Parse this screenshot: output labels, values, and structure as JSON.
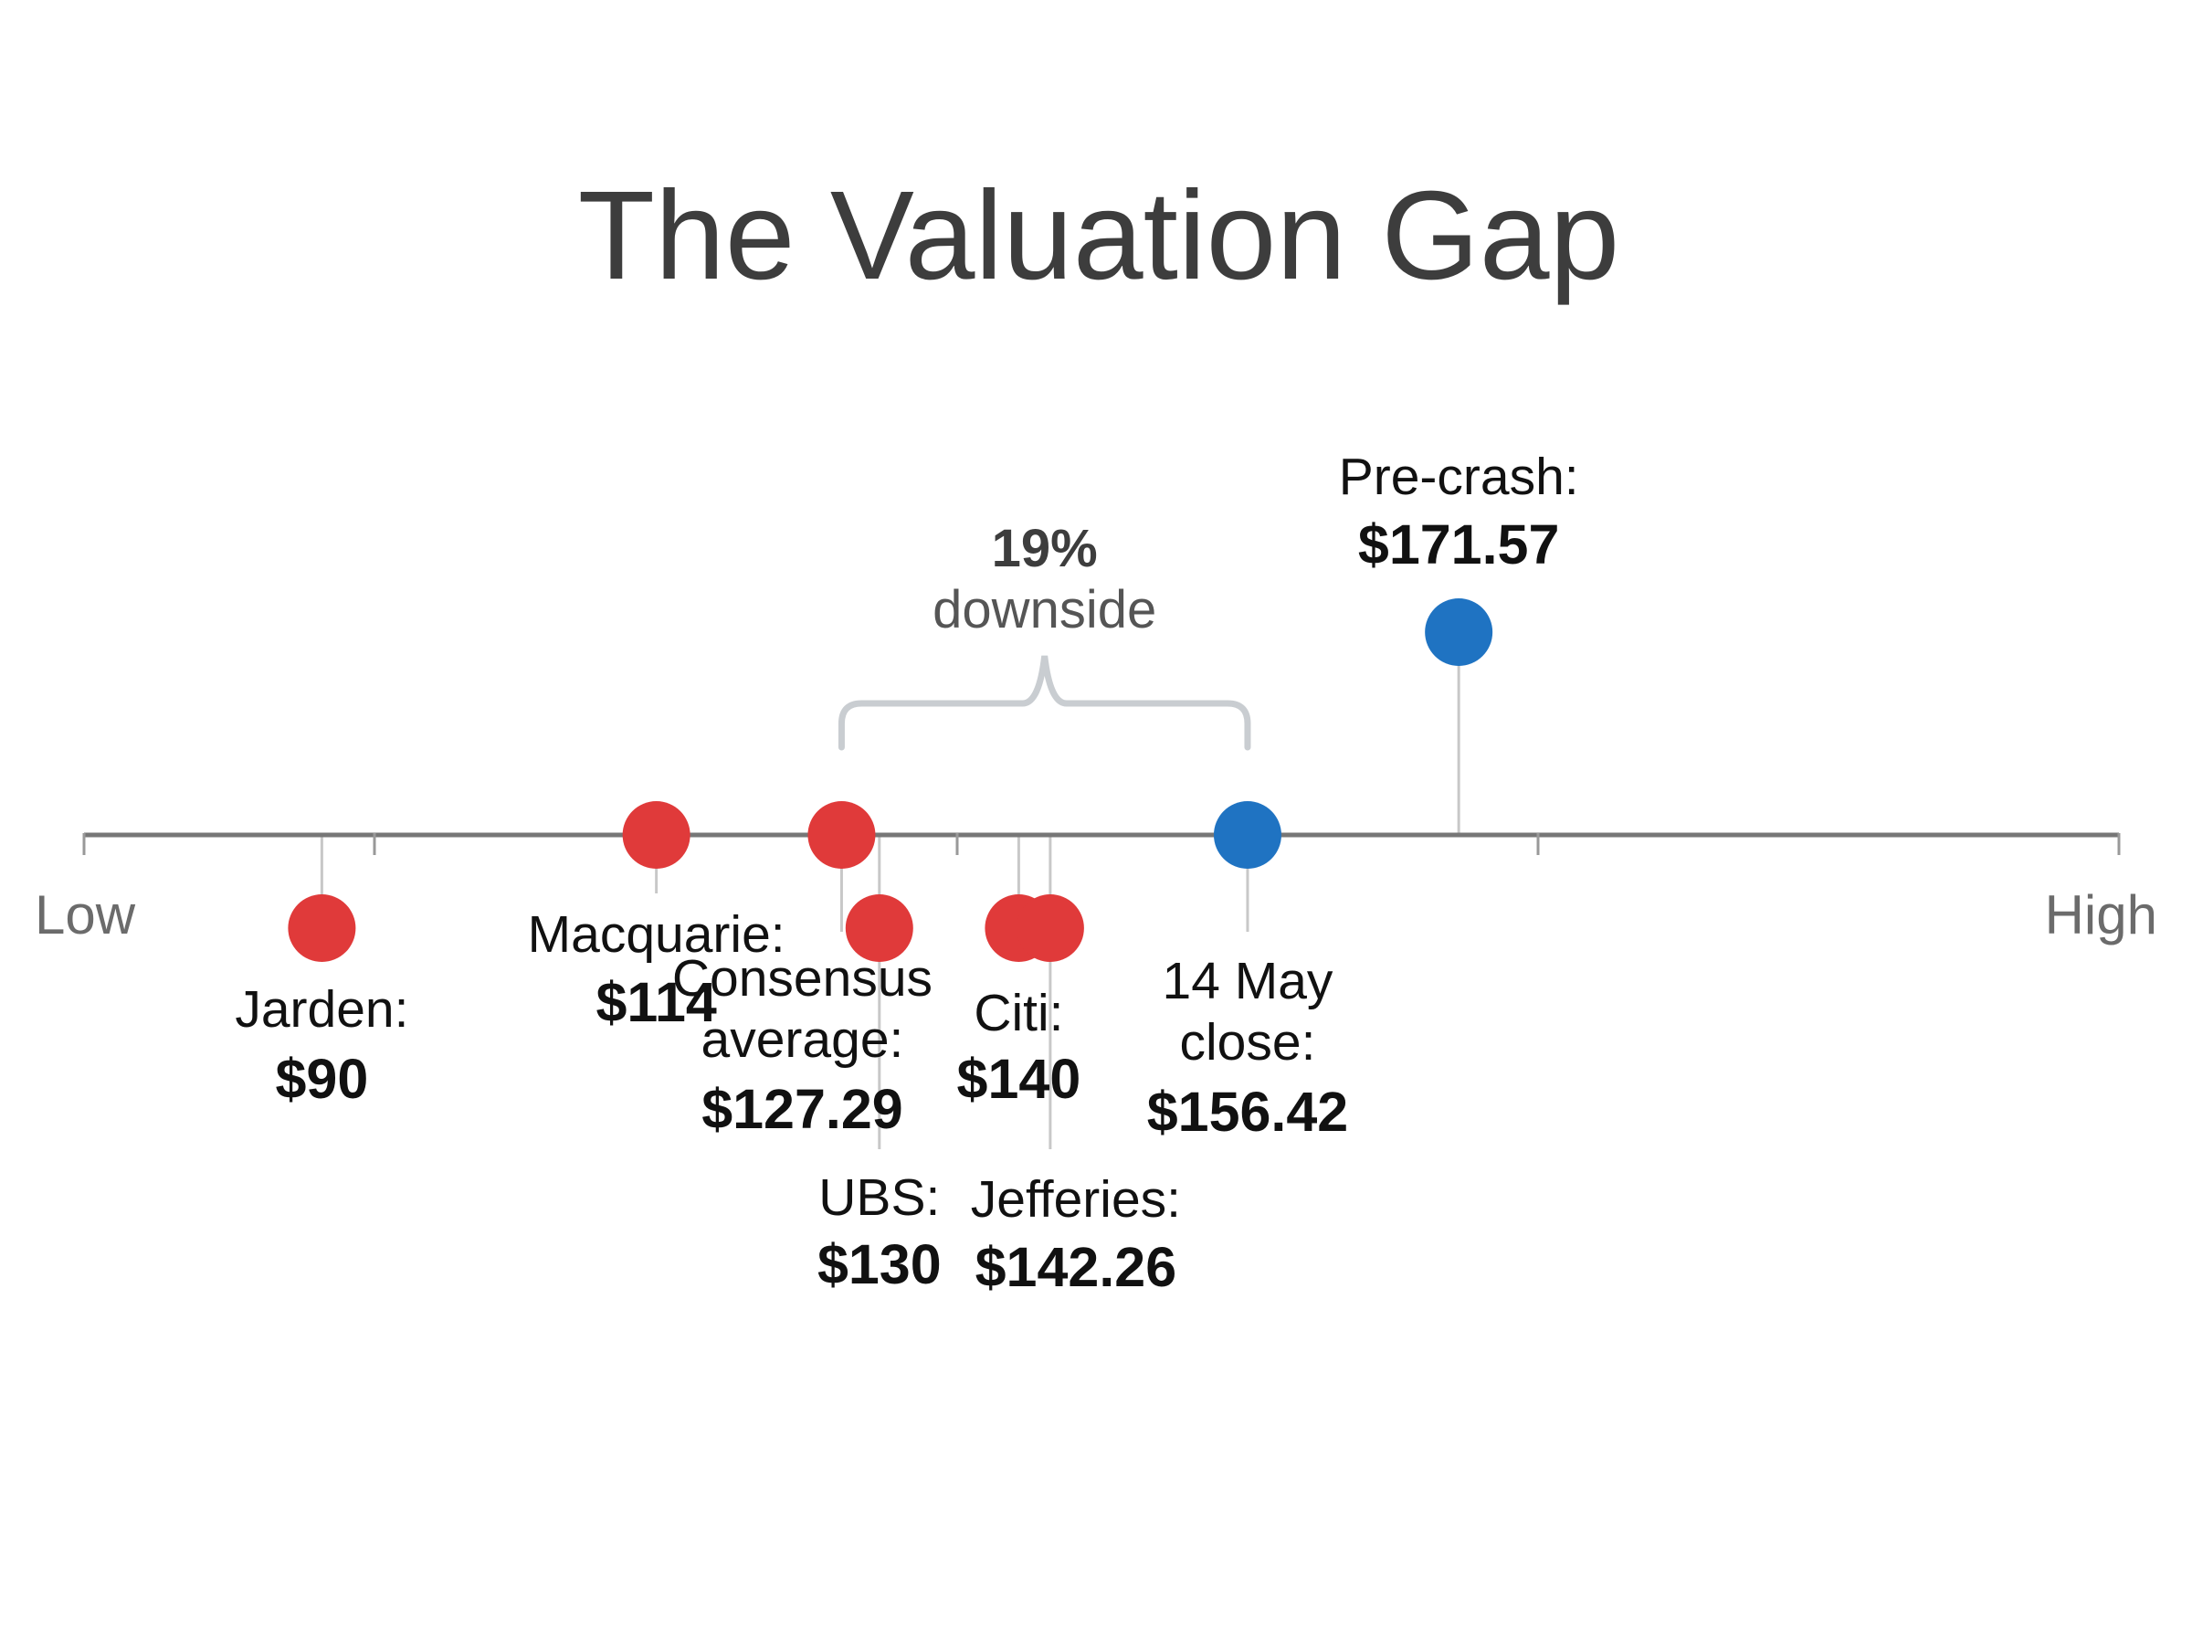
{
  "chart_data": {
    "type": "scatter",
    "title": "The Valuation Gap",
    "axis": {
      "low_label": "Low",
      "high_label": "High",
      "range": [
        80,
        180
      ]
    },
    "points": [
      {
        "name": "Jarden:",
        "value_label": "$90",
        "value": 90,
        "color": "#e03a3a"
      },
      {
        "name": "Macquarie:",
        "value_label": "$114",
        "value": 114,
        "color": "#e03a3a"
      },
      {
        "name": "Consensus average:",
        "value_label": "$127.29",
        "value": 127.29,
        "color": "#e03a3a"
      },
      {
        "name": "UBS:",
        "value_label": "$130",
        "value": 130,
        "color": "#e03a3a"
      },
      {
        "name": "Citi:",
        "value_label": "$140",
        "value": 140,
        "color": "#e03a3a"
      },
      {
        "name": "Jefferies:",
        "value_label": "$142.26",
        "value": 142.26,
        "color": "#e03a3a"
      },
      {
        "name": "14 May close:",
        "value_label": "$156.42",
        "value": 156.42,
        "color": "#1f73c2"
      },
      {
        "name": "Pre-crash:",
        "value_label": "$171.57",
        "value": 171.57,
        "color": "#1f73c2"
      }
    ],
    "annotation": {
      "percent": "19%",
      "text": "downside",
      "from_value": 127.29,
      "to_value": 156.42
    },
    "colors": {
      "analyst": "#e03a3a",
      "market": "#1f73c2",
      "axis": "#777777",
      "bracket": "#c9cdd1"
    }
  }
}
